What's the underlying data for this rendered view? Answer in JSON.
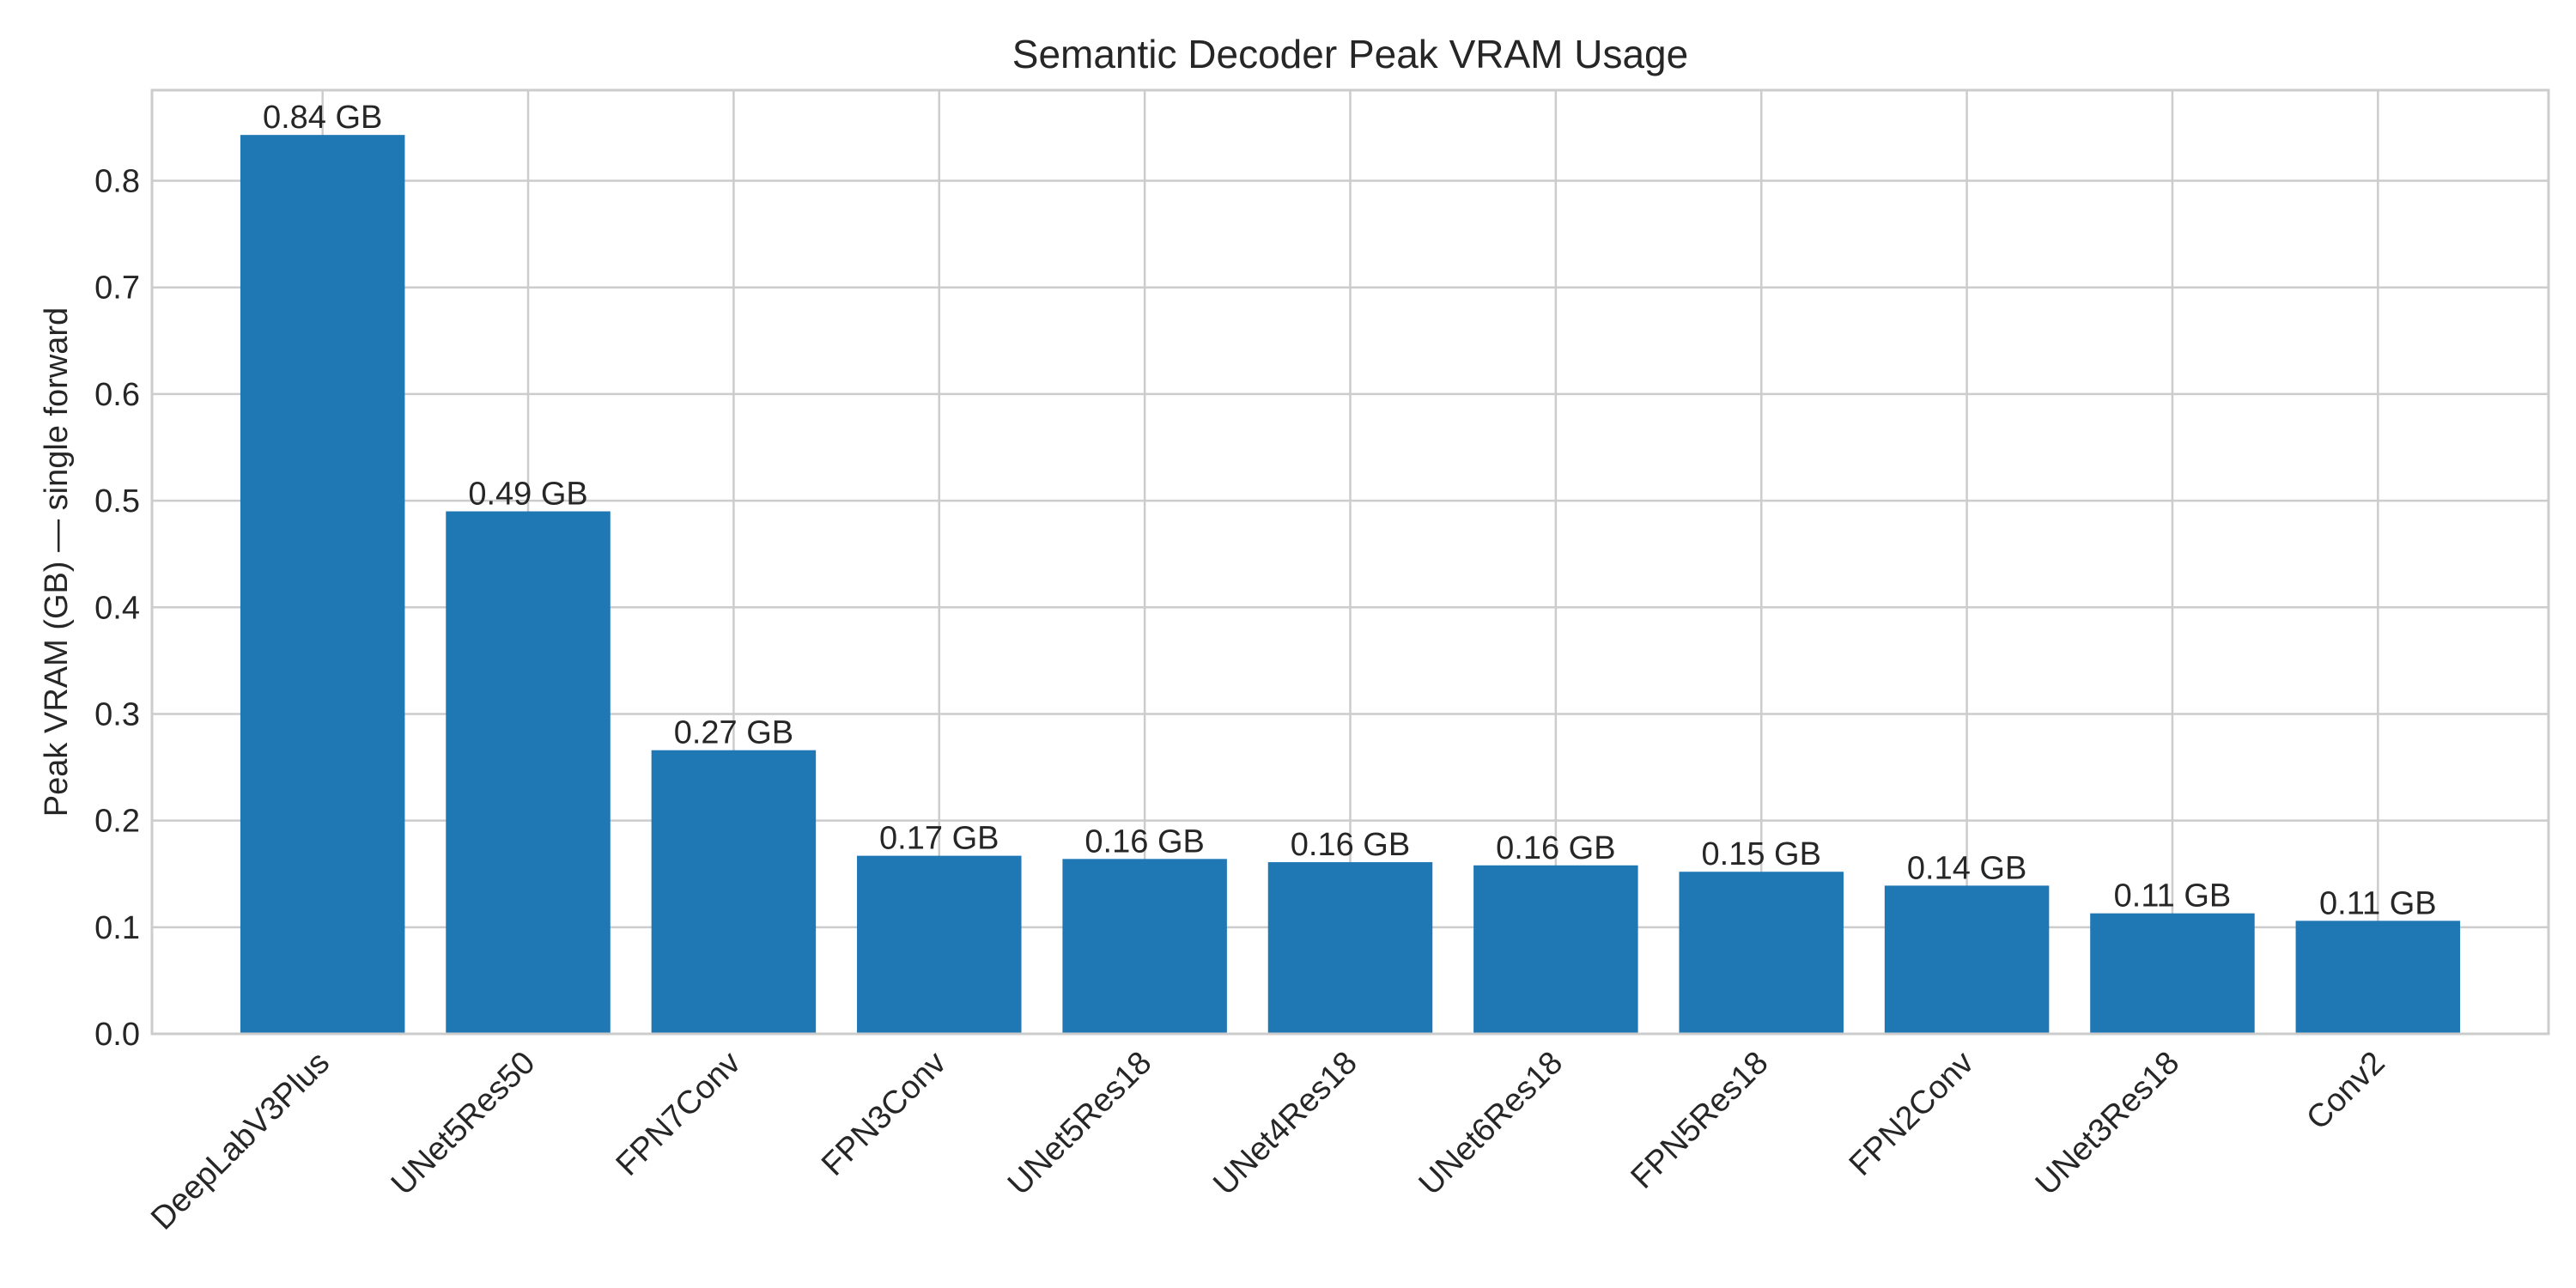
{
  "chart_data": {
    "type": "bar",
    "title": "Semantic Decoder Peak VRAM Usage",
    "xlabel": "",
    "ylabel": "Peak VRAM (GB) — single forward",
    "categories": [
      "DeepLabV3Plus",
      "UNet5Res50",
      "FPN7Conv",
      "FPN3Conv",
      "UNet5Res18",
      "UNet4Res18",
      "UNet6Res18",
      "FPN5Res18",
      "FPN2Conv",
      "UNet3Res18",
      "Conv2"
    ],
    "values": [
      0.843,
      0.49,
      0.266,
      0.167,
      0.164,
      0.161,
      0.158,
      0.152,
      0.139,
      0.113,
      0.106
    ],
    "bar_labels": [
      "0.84 GB",
      "0.49 GB",
      "0.27 GB",
      "0.17 GB",
      "0.16 GB",
      "0.16 GB",
      "0.16 GB",
      "0.15 GB",
      "0.14 GB",
      "0.11 GB",
      "0.11 GB"
    ],
    "ylim": [
      0,
      0.885
    ],
    "yticks": [
      0.0,
      0.1,
      0.2,
      0.3,
      0.4,
      0.5,
      0.6,
      0.7,
      0.8
    ],
    "ytick_labels": [
      "0.0",
      "0.1",
      "0.2",
      "0.3",
      "0.4",
      "0.5",
      "0.6",
      "0.7",
      "0.8"
    ],
    "grid": true,
    "bar_color": "#1f77b4"
  }
}
